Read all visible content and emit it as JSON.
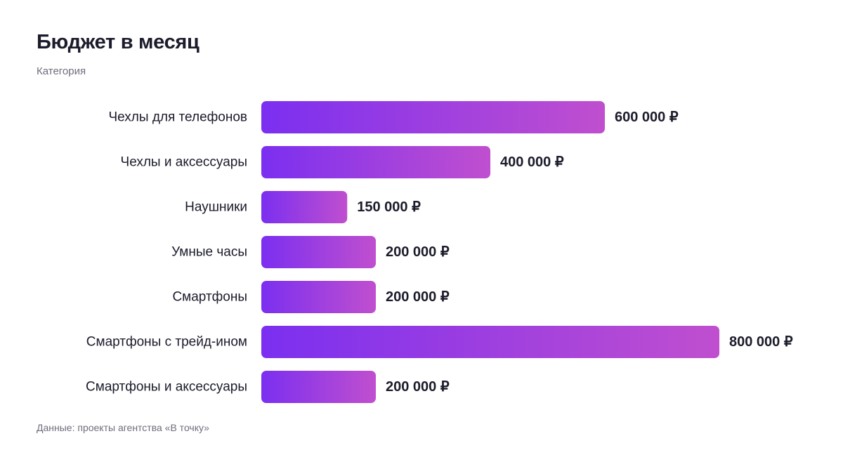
{
  "title": "Бюджет в месяц",
  "subtitle": "Категория",
  "source": "Данные: проекты агентства «В точку»",
  "colors": {
    "bar_start": "#7b2ff0",
    "bar_end": "#c04fcf",
    "text": "#1b1b2b",
    "muted": "#6e6e7e"
  },
  "chart_data": {
    "type": "bar",
    "orientation": "horizontal",
    "categories": [
      "Чехлы для телефонов",
      "Чехлы и аксессуары",
      "Наушники",
      "Умные часы",
      "Смартфоны",
      "Смартфоны с трейд-ином",
      "Смартфоны и аксессуары"
    ],
    "values": [
      600000,
      400000,
      150000,
      200000,
      200000,
      800000,
      200000
    ],
    "value_labels": [
      "600 000 ₽",
      "400 000 ₽",
      "150 000 ₽",
      "200 000 ₽",
      "200 000 ₽",
      "800 000 ₽",
      "200 000 ₽"
    ],
    "xlim": [
      0,
      800000
    ],
    "grid": false,
    "legend": "none"
  }
}
